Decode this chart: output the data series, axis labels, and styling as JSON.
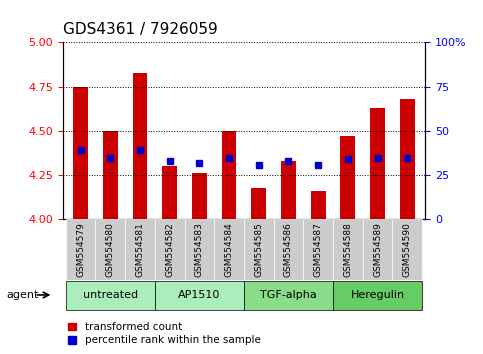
{
  "title": "GDS4361 / 7926059",
  "samples": [
    "GSM554579",
    "GSM554580",
    "GSM554581",
    "GSM554582",
    "GSM554583",
    "GSM554584",
    "GSM554585",
    "GSM554586",
    "GSM554587",
    "GSM554588",
    "GSM554589",
    "GSM554590"
  ],
  "red_values": [
    4.75,
    4.5,
    4.83,
    4.3,
    4.26,
    4.5,
    4.18,
    4.33,
    4.16,
    4.47,
    4.63,
    4.68
  ],
  "blue_values": [
    39,
    35,
    39,
    33,
    32,
    35,
    31,
    33,
    31,
    34,
    35,
    35
  ],
  "ylim_left": [
    4.0,
    5.0
  ],
  "ylim_right": [
    0,
    100
  ],
  "yticks_left": [
    4.0,
    4.25,
    4.5,
    4.75,
    5.0
  ],
  "yticks_right": [
    0,
    25,
    50,
    75,
    100
  ],
  "ytick_labels_right": [
    "0",
    "25",
    "50",
    "75",
    "100%"
  ],
  "bar_color": "#cc0000",
  "dot_color": "#0000cc",
  "bar_width": 0.5,
  "baseline": 4.0,
  "groups": [
    {
      "label": "untreated",
      "indices": [
        0,
        1,
        2
      ],
      "color": "#99ee99"
    },
    {
      "label": "AP1510",
      "indices": [
        3,
        4,
        5
      ],
      "color": "#99ee99"
    },
    {
      "label": "TGF-alpha",
      "indices": [
        6,
        7,
        8
      ],
      "color": "#77dd77"
    },
    {
      "label": "Heregulin",
      "indices": [
        9,
        10,
        11
      ],
      "color": "#66cc66"
    }
  ],
  "agent_label": "agent",
  "legend_red": "transformed count",
  "legend_blue": "percentile rank within the sample",
  "grid_color": "#000000",
  "bg_color": "#ffffff",
  "tick_area_color": "#cccccc"
}
